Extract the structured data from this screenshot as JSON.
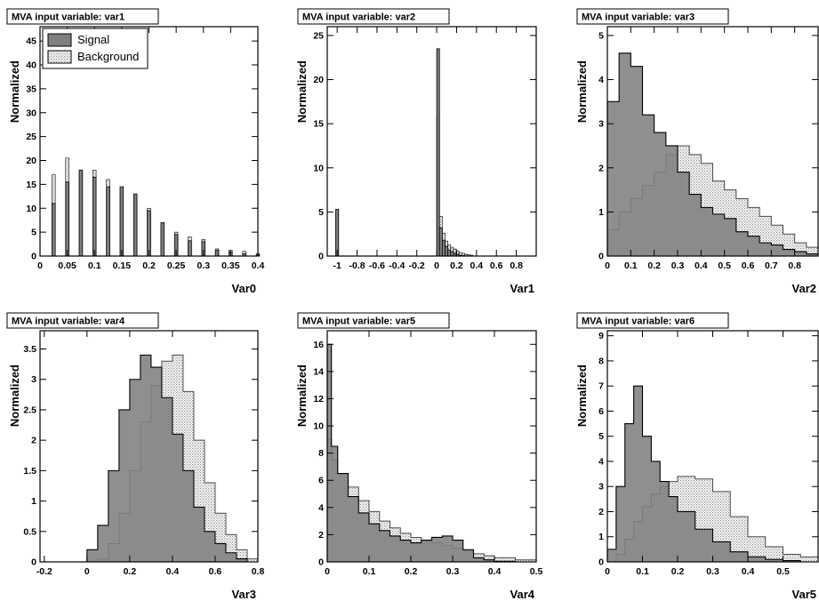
{
  "colors": {
    "signal_fill": "#7f7f7f",
    "background_fill": "#dcdcdc",
    "axis": "#000000"
  },
  "legend": {
    "signal": "Signal",
    "background": "Background"
  },
  "chart_data": [
    {
      "type": "bar",
      "title": "MVA input variable: var1",
      "xlabel": "Var0",
      "ylabel": "Normalized",
      "xlim": [
        0,
        0.4
      ],
      "ylim": [
        0,
        48
      ],
      "xticks": [
        "0",
        "0.05",
        "0.1",
        "0.15",
        "0.2",
        "0.25",
        "0.3",
        "0.35",
        "0.4"
      ],
      "yticks": [
        "0",
        "5",
        "10",
        "15",
        "20",
        "25",
        "30",
        "35",
        "40",
        "45"
      ],
      "legend": true,
      "bin_width": 0.006,
      "series": [
        {
          "name": "Signal",
          "x": [
            0.025,
            0.05,
            0.075,
            0.1,
            0.125,
            0.15,
            0.175,
            0.2,
            0.225,
            0.25,
            0.275,
            0.3,
            0.325,
            0.35,
            0.375,
            0.4
          ],
          "values": [
            11,
            15.5,
            18,
            16.5,
            14.5,
            14.5,
            13,
            9.5,
            7,
            4.5,
            3.2,
            3,
            1.2,
            0.8,
            0.5,
            0.2
          ]
        },
        {
          "name": "Background",
          "x": [
            0.025,
            0.05,
            0.075,
            0.1,
            0.125,
            0.15,
            0.175,
            0.2,
            0.225,
            0.25,
            0.275,
            0.3,
            0.325,
            0.35,
            0.375,
            0.4
          ],
          "values": [
            17,
            20.5,
            17.5,
            18,
            16,
            14,
            12,
            10,
            6,
            5,
            4,
            3.5,
            1.5,
            1.2,
            1,
            0.5
          ]
        }
      ]
    },
    {
      "type": "bar",
      "title": "MVA input variable: var2",
      "xlabel": "Var1",
      "ylabel": "Normalized",
      "xlim": [
        -1.1,
        1.0
      ],
      "ylim": [
        0,
        26
      ],
      "xticks": [
        "-1",
        "-0.8",
        "-0.6",
        "-0.4",
        "-0.2",
        "0",
        "0.2",
        "0.4",
        "0.6",
        "0.8"
      ],
      "yticks": [
        "0",
        "5",
        "10",
        "15",
        "20",
        "25"
      ],
      "bin_width": 0.028,
      "series": [
        {
          "name": "Signal",
          "x": [
            -1.0,
            0.014,
            0.042,
            0.07,
            0.098,
            0.126,
            0.154,
            0.182,
            0.21,
            0.238,
            0.266
          ],
          "values": [
            5.3,
            23.5,
            3.2,
            1.8,
            1.1,
            0.7,
            0.5,
            0.3,
            0.2,
            0.1,
            0.05
          ]
        },
        {
          "name": "Background",
          "x": [
            -1.0,
            0.014,
            0.042,
            0.07,
            0.098,
            0.126,
            0.154,
            0.182,
            0.21,
            0.238,
            0.266,
            0.294,
            0.322,
            0.35
          ],
          "values": [
            5.2,
            16,
            4.5,
            2.6,
            1.7,
            1.3,
            1.0,
            0.8,
            0.6,
            0.4,
            0.3,
            0.2,
            0.15,
            0.1
          ]
        }
      ]
    },
    {
      "type": "area",
      "title": "MVA input variable: var3",
      "xlabel": "Var2",
      "ylabel": "Normalized",
      "xlim": [
        0,
        0.9
      ],
      "ylim": [
        0,
        5.2
      ],
      "xticks": [
        "0",
        "0.1",
        "0.2",
        "0.3",
        "0.4",
        "0.5",
        "0.6",
        "0.7",
        "0.8"
      ],
      "yticks": [
        "0",
        "1",
        "2",
        "3",
        "4",
        "5"
      ],
      "series": [
        {
          "name": "Signal",
          "x": [
            0,
            0.05,
            0.1,
            0.15,
            0.2,
            0.25,
            0.3,
            0.35,
            0.4,
            0.45,
            0.5,
            0.55,
            0.6,
            0.65,
            0.7,
            0.75,
            0.8,
            0.85,
            0.9
          ],
          "values": [
            3.5,
            4.6,
            4.3,
            3.2,
            2.8,
            2.5,
            1.9,
            1.4,
            1.1,
            0.95,
            0.85,
            0.55,
            0.45,
            0.3,
            0.25,
            0.15,
            0.1,
            0.05,
            0.05
          ]
        },
        {
          "name": "Background",
          "x": [
            0,
            0.05,
            0.1,
            0.15,
            0.2,
            0.25,
            0.3,
            0.35,
            0.4,
            0.45,
            0.5,
            0.55,
            0.6,
            0.65,
            0.7,
            0.75,
            0.8,
            0.85,
            0.9
          ],
          "values": [
            0.6,
            1.0,
            1.3,
            1.6,
            1.9,
            2.3,
            2.5,
            2.3,
            2.1,
            1.7,
            1.5,
            1.3,
            1.1,
            0.9,
            0.7,
            0.5,
            0.3,
            0.2,
            0.15
          ]
        }
      ]
    },
    {
      "type": "area",
      "title": "MVA input variable: var4",
      "xlabel": "Var3",
      "ylabel": "Normalized",
      "xlim": [
        -0.22,
        0.8
      ],
      "ylim": [
        0,
        3.8
      ],
      "xticks": [
        "-0.2",
        "0",
        "0.2",
        "0.4",
        "0.6",
        "0.8"
      ],
      "yticks": [
        "0",
        "0.5",
        "1",
        "1.5",
        "2",
        "2.5",
        "3",
        "3.5"
      ],
      "series": [
        {
          "name": "Signal",
          "x": [
            -0.2,
            -0.1,
            0,
            0.05,
            0.1,
            0.15,
            0.2,
            0.25,
            0.3,
            0.35,
            0.4,
            0.45,
            0.5,
            0.55,
            0.6,
            0.65,
            0.7,
            0.75,
            0.8
          ],
          "values": [
            0,
            0,
            0.2,
            0.6,
            1.5,
            2.5,
            3.0,
            3.4,
            3.2,
            2.7,
            2.1,
            1.5,
            0.9,
            0.5,
            0.3,
            0.15,
            0.05,
            0,
            0
          ]
        },
        {
          "name": "Background",
          "x": [
            -0.2,
            -0.1,
            0,
            0.05,
            0.1,
            0.15,
            0.2,
            0.25,
            0.3,
            0.35,
            0.4,
            0.45,
            0.5,
            0.55,
            0.6,
            0.65,
            0.7,
            0.75,
            0.8
          ],
          "values": [
            0,
            0,
            0,
            0.05,
            0.3,
            0.8,
            1.5,
            2.3,
            2.9,
            3.3,
            3.4,
            2.8,
            2.0,
            1.3,
            0.8,
            0.45,
            0.2,
            0.05,
            0
          ]
        }
      ]
    },
    {
      "type": "area",
      "title": "MVA input variable: var5",
      "xlabel": "Var4",
      "ylabel": "Normalized",
      "xlim": [
        0,
        0.5
      ],
      "ylim": [
        0,
        17
      ],
      "xticks": [
        "0",
        "0.1",
        "0.2",
        "0.3",
        "0.4",
        "0.5"
      ],
      "yticks": [
        "0",
        "2",
        "4",
        "6",
        "8",
        "10",
        "12",
        "14",
        "16"
      ],
      "series": [
        {
          "name": "Signal",
          "x": [
            0,
            0.01,
            0.025,
            0.05,
            0.075,
            0.1,
            0.125,
            0.15,
            0.175,
            0.2,
            0.225,
            0.25,
            0.275,
            0.3,
            0.325,
            0.35,
            0.375,
            0.4,
            0.45,
            0.5
          ],
          "values": [
            16,
            8.5,
            6.5,
            4.8,
            3.6,
            2.8,
            2.3,
            1.9,
            1.6,
            1.4,
            1.6,
            1.8,
            1.9,
            1.6,
            0.9,
            0.3,
            0.15,
            0.05,
            0,
            0
          ]
        },
        {
          "name": "Background",
          "x": [
            0,
            0.01,
            0.025,
            0.05,
            0.075,
            0.1,
            0.125,
            0.15,
            0.175,
            0.2,
            0.225,
            0.25,
            0.275,
            0.3,
            0.325,
            0.35,
            0.375,
            0.4,
            0.45,
            0.5
          ],
          "values": [
            9,
            7.5,
            6.5,
            5.5,
            4.5,
            3.7,
            3.0,
            2.5,
            2.1,
            1.8,
            1.6,
            1.4,
            1.2,
            1.0,
            0.8,
            0.6,
            0.45,
            0.3,
            0.15,
            0.05
          ]
        }
      ]
    },
    {
      "type": "area",
      "title": "MVA input variable: var6",
      "xlabel": "Var5",
      "ylabel": "Normalized",
      "xlim": [
        0,
        0.6
      ],
      "ylim": [
        0,
        9.2
      ],
      "xticks": [
        "0",
        "0.1",
        "0.2",
        "0.3",
        "0.4",
        "0.5"
      ],
      "yticks": [
        "0",
        "1",
        "2",
        "3",
        "4",
        "5",
        "6",
        "7",
        "8",
        "9"
      ],
      "series": [
        {
          "name": "Signal",
          "x": [
            0,
            0.025,
            0.05,
            0.075,
            0.1,
            0.125,
            0.15,
            0.175,
            0.2,
            0.25,
            0.3,
            0.35,
            0.4,
            0.45,
            0.5,
            0.55,
            0.6
          ],
          "values": [
            0.5,
            3.0,
            5.5,
            7.0,
            5.0,
            4.0,
            3.2,
            2.6,
            2.0,
            1.3,
            0.8,
            0.4,
            0.2,
            0.1,
            0.05,
            0,
            0
          ]
        },
        {
          "name": "Background",
          "x": [
            0,
            0.025,
            0.05,
            0.075,
            0.1,
            0.125,
            0.15,
            0.175,
            0.2,
            0.25,
            0.3,
            0.35,
            0.4,
            0.45,
            0.5,
            0.55,
            0.6
          ],
          "values": [
            0,
            0.3,
            0.9,
            1.6,
            2.2,
            2.7,
            3.0,
            3.2,
            3.4,
            3.3,
            2.8,
            1.8,
            1.0,
            0.6,
            0.3,
            0.2,
            0.1
          ]
        }
      ]
    }
  ]
}
